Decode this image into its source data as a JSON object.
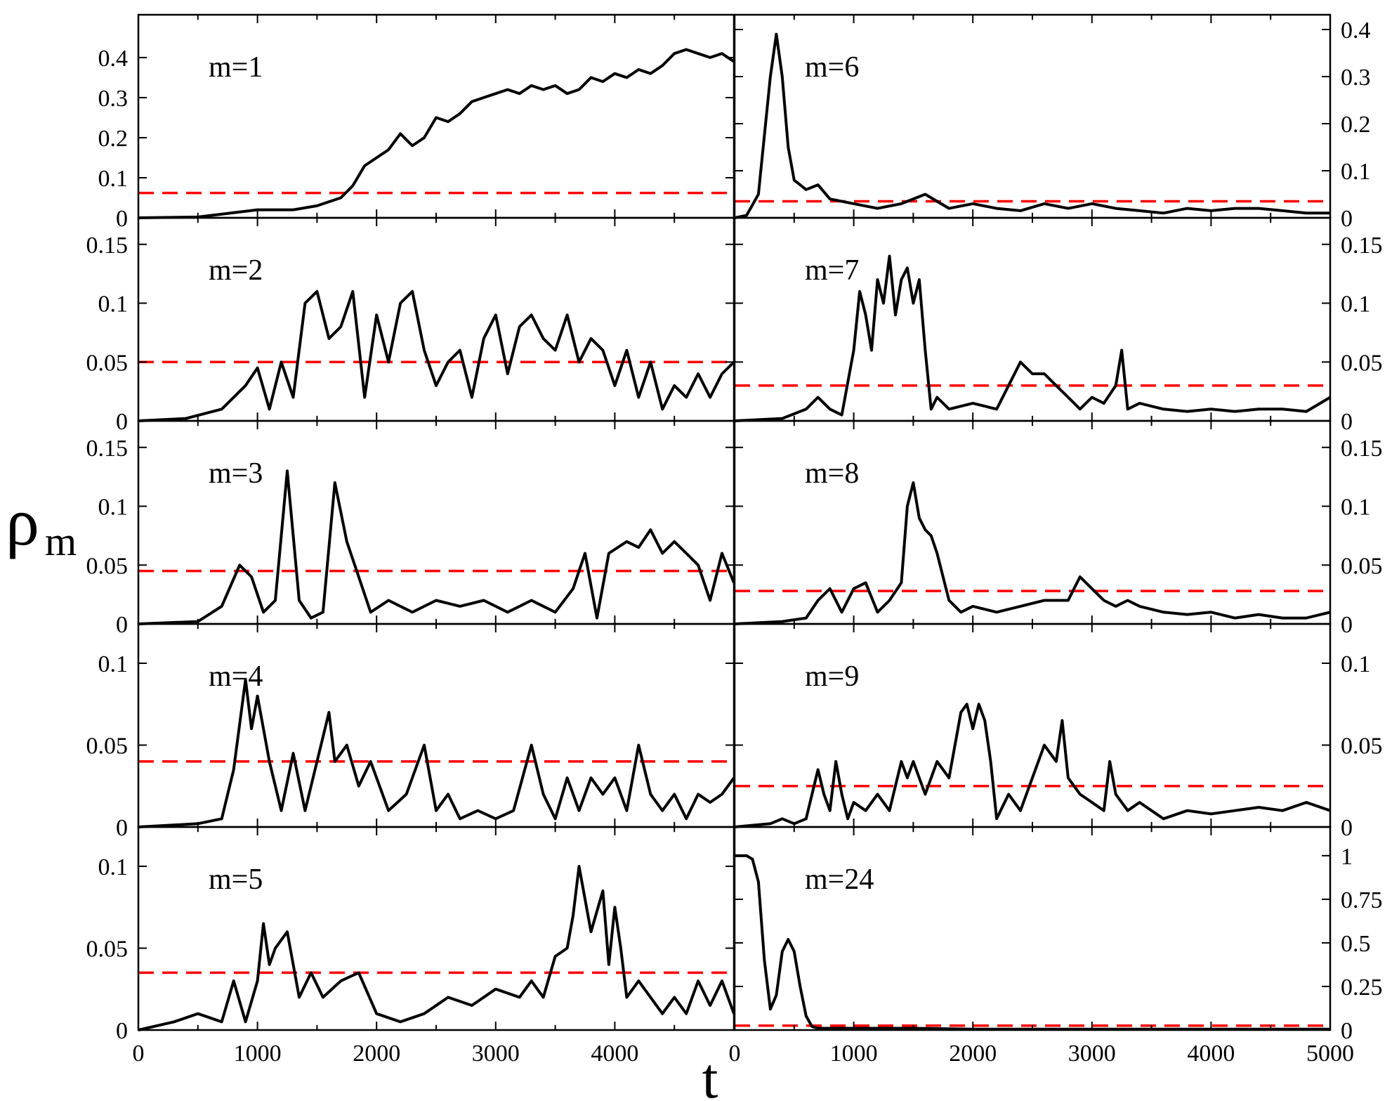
{
  "figure": {
    "ylabel": "ρ",
    "ylabel_sub": "m",
    "xlabel": "t"
  },
  "chart_data": [
    {
      "type": "line",
      "label": "m=1",
      "xlim": [
        0,
        5000
      ],
      "ylim": [
        0,
        0.47
      ],
      "yticks": [
        0,
        0.1,
        0.2,
        0.3,
        0.4
      ],
      "ytick_labels": [
        "0",
        "0.1",
        "0.2",
        "0.3",
        "0.4"
      ],
      "reference_level": 0.062,
      "series": {
        "x": [
          0,
          500,
          1000,
          1300,
          1500,
          1700,
          1800,
          1900,
          2000,
          2100,
          2200,
          2300,
          2400,
          2500,
          2600,
          2700,
          2800,
          2900,
          3000,
          3100,
          3200,
          3300,
          3400,
          3500,
          3600,
          3700,
          3800,
          3900,
          4000,
          4100,
          4200,
          4300,
          4400,
          4500,
          4600,
          4700,
          4800,
          4900,
          5000
        ],
        "y": [
          0,
          0.002,
          0.02,
          0.02,
          0.03,
          0.05,
          0.08,
          0.13,
          0.15,
          0.17,
          0.21,
          0.18,
          0.2,
          0.25,
          0.24,
          0.26,
          0.29,
          0.3,
          0.31,
          0.32,
          0.31,
          0.33,
          0.32,
          0.33,
          0.31,
          0.32,
          0.35,
          0.34,
          0.36,
          0.35,
          0.37,
          0.36,
          0.38,
          0.41,
          0.42,
          0.41,
          0.4,
          0.41,
          0.39
        ]
      }
    },
    {
      "type": "line",
      "label": "m=2",
      "xlim": [
        0,
        5000
      ],
      "ylim": [
        0,
        0.16
      ],
      "yticks": [
        0,
        0.05,
        0.1,
        0.15
      ],
      "ytick_labels": [
        "0",
        "0.05",
        "0.1",
        "0.15"
      ],
      "reference_level": 0.05,
      "series": {
        "x": [
          0,
          400,
          700,
          900,
          1000,
          1100,
          1200,
          1300,
          1400,
          1500,
          1600,
          1700,
          1800,
          1900,
          2000,
          2100,
          2200,
          2300,
          2400,
          2500,
          2600,
          2700,
          2800,
          2900,
          3000,
          3100,
          3200,
          3300,
          3400,
          3500,
          3600,
          3700,
          3800,
          3900,
          4000,
          4100,
          4200,
          4300,
          4400,
          4500,
          4600,
          4700,
          4800,
          4900,
          5000
        ],
        "y": [
          0,
          0.002,
          0.01,
          0.03,
          0.045,
          0.01,
          0.05,
          0.02,
          0.1,
          0.11,
          0.07,
          0.08,
          0.11,
          0.02,
          0.09,
          0.05,
          0.1,
          0.11,
          0.06,
          0.03,
          0.05,
          0.06,
          0.02,
          0.07,
          0.09,
          0.04,
          0.08,
          0.09,
          0.07,
          0.06,
          0.09,
          0.05,
          0.07,
          0.06,
          0.03,
          0.06,
          0.02,
          0.05,
          0.01,
          0.03,
          0.02,
          0.04,
          0.02,
          0.04,
          0.05
        ]
      }
    },
    {
      "type": "line",
      "label": "m=3",
      "xlim": [
        0,
        5000
      ],
      "ylim": [
        0,
        0.16
      ],
      "yticks": [
        0,
        0.05,
        0.1,
        0.15
      ],
      "ytick_labels": [
        "0",
        "0.05",
        "0.1",
        "0.15"
      ],
      "reference_level": 0.045,
      "series": {
        "x": [
          0,
          500,
          700,
          850,
          950,
          1050,
          1150,
          1250,
          1350,
          1450,
          1550,
          1650,
          1750,
          1850,
          1950,
          2100,
          2300,
          2500,
          2700,
          2900,
          3100,
          3300,
          3500,
          3650,
          3750,
          3850,
          3950,
          4100,
          4200,
          4300,
          4400,
          4500,
          4600,
          4700,
          4800,
          4900,
          5000
        ],
        "y": [
          0,
          0.002,
          0.015,
          0.05,
          0.04,
          0.01,
          0.02,
          0.13,
          0.02,
          0.005,
          0.01,
          0.12,
          0.07,
          0.04,
          0.01,
          0.02,
          0.01,
          0.02,
          0.015,
          0.02,
          0.01,
          0.02,
          0.01,
          0.03,
          0.06,
          0.005,
          0.06,
          0.07,
          0.065,
          0.08,
          0.06,
          0.07,
          0.06,
          0.05,
          0.02,
          0.06,
          0.035
        ]
      }
    },
    {
      "type": "line",
      "label": "m=4",
      "xlim": [
        0,
        5000
      ],
      "ylim": [
        0,
        0.115
      ],
      "yticks": [
        0,
        0.05,
        0.1
      ],
      "ytick_labels": [
        "0",
        "0.05",
        "0.1"
      ],
      "reference_level": 0.04,
      "series": {
        "x": [
          0,
          500,
          700,
          800,
          900,
          950,
          1000,
          1100,
          1200,
          1300,
          1400,
          1500,
          1600,
          1650,
          1750,
          1850,
          1950,
          2100,
          2250,
          2400,
          2500,
          2600,
          2700,
          2850,
          3000,
          3150,
          3300,
          3400,
          3500,
          3600,
          3700,
          3800,
          3900,
          4000,
          4100,
          4200,
          4300,
          4400,
          4500,
          4600,
          4700,
          4800,
          4900,
          5000
        ],
        "y": [
          0,
          0.002,
          0.005,
          0.035,
          0.09,
          0.06,
          0.08,
          0.04,
          0.01,
          0.045,
          0.01,
          0.04,
          0.07,
          0.04,
          0.05,
          0.025,
          0.04,
          0.01,
          0.02,
          0.05,
          0.01,
          0.02,
          0.005,
          0.01,
          0.005,
          0.01,
          0.05,
          0.02,
          0.005,
          0.03,
          0.01,
          0.03,
          0.02,
          0.03,
          0.01,
          0.05,
          0.02,
          0.01,
          0.02,
          0.005,
          0.02,
          0.015,
          0.02,
          0.03
        ]
      }
    },
    {
      "type": "line",
      "label": "m=5",
      "xlim": [
        0,
        5000
      ],
      "ylim": [
        0,
        0.115
      ],
      "yticks": [
        0,
        0.05,
        0.1
      ],
      "ytick_labels": [
        "0",
        "0.05",
        "0.1"
      ],
      "reference_level": 0.035,
      "series": {
        "x": [
          0,
          300,
          500,
          700,
          800,
          900,
          1000,
          1050,
          1100,
          1150,
          1250,
          1350,
          1450,
          1550,
          1700,
          1850,
          2000,
          2200,
          2400,
          2600,
          2800,
          3000,
          3200,
          3300,
          3400,
          3500,
          3600,
          3650,
          3700,
          3750,
          3800,
          3900,
          3950,
          4000,
          4050,
          4100,
          4200,
          4300,
          4400,
          4500,
          4600,
          4700,
          4800,
          4900,
          5000
        ],
        "y": [
          0,
          0.005,
          0.01,
          0.005,
          0.03,
          0.005,
          0.03,
          0.065,
          0.04,
          0.05,
          0.06,
          0.02,
          0.035,
          0.02,
          0.03,
          0.035,
          0.01,
          0.005,
          0.01,
          0.02,
          0.015,
          0.025,
          0.02,
          0.03,
          0.02,
          0.045,
          0.05,
          0.07,
          0.1,
          0.08,
          0.06,
          0.085,
          0.04,
          0.075,
          0.05,
          0.02,
          0.03,
          0.02,
          0.01,
          0.02,
          0.01,
          0.03,
          0.015,
          0.03,
          0.01
        ]
      }
    },
    {
      "type": "line",
      "label": "m=6",
      "xlim": [
        0,
        5000
      ],
      "ylim": [
        0,
        0.4
      ],
      "yticks": [
        0,
        0.1,
        0.2,
        0.3,
        0.4
      ],
      "ytick_labels": [
        "0",
        "0.1",
        "0.2",
        "0.3",
        "0.4"
      ],
      "reference_level": 0.035,
      "series": {
        "x": [
          0,
          100,
          200,
          300,
          350,
          400,
          450,
          500,
          550,
          600,
          700,
          800,
          1000,
          1200,
          1400,
          1600,
          1800,
          2000,
          2200,
          2400,
          2600,
          2800,
          3000,
          3200,
          3400,
          3600,
          3800,
          4000,
          4200,
          4400,
          4600,
          4800,
          5000
        ],
        "y": [
          0,
          0.005,
          0.05,
          0.3,
          0.39,
          0.3,
          0.15,
          0.08,
          0.07,
          0.06,
          0.07,
          0.04,
          0.03,
          0.02,
          0.03,
          0.05,
          0.02,
          0.03,
          0.02,
          0.015,
          0.03,
          0.02,
          0.03,
          0.02,
          0.015,
          0.01,
          0.02,
          0.015,
          0.02,
          0.02,
          0.015,
          0.01,
          0.01
        ]
      }
    },
    {
      "type": "line",
      "label": "m=7",
      "xlim": [
        0,
        5000
      ],
      "ylim": [
        0,
        0.16
      ],
      "yticks": [
        0,
        0.05,
        0.1,
        0.15
      ],
      "ytick_labels": [
        "0",
        "0.05",
        "0.1",
        "0.15"
      ],
      "reference_level": 0.03,
      "series": {
        "x": [
          0,
          400,
          600,
          700,
          800,
          900,
          1000,
          1050,
          1100,
          1150,
          1200,
          1250,
          1300,
          1350,
          1400,
          1450,
          1500,
          1550,
          1600,
          1650,
          1700,
          1800,
          2000,
          2200,
          2400,
          2500,
          2600,
          2700,
          2800,
          2900,
          3000,
          3100,
          3200,
          3250,
          3300,
          3400,
          3600,
          3800,
          4000,
          4200,
          4400,
          4600,
          4800,
          5000
        ],
        "y": [
          0,
          0.002,
          0.01,
          0.02,
          0.01,
          0.005,
          0.06,
          0.11,
          0.09,
          0.06,
          0.12,
          0.1,
          0.14,
          0.09,
          0.12,
          0.13,
          0.1,
          0.12,
          0.06,
          0.01,
          0.02,
          0.01,
          0.015,
          0.01,
          0.05,
          0.04,
          0.04,
          0.03,
          0.02,
          0.01,
          0.02,
          0.015,
          0.03,
          0.06,
          0.01,
          0.015,
          0.01,
          0.008,
          0.01,
          0.008,
          0.01,
          0.01,
          0.008,
          0.02
        ]
      }
    },
    {
      "type": "line",
      "label": "m=8",
      "xlim": [
        0,
        5000
      ],
      "ylim": [
        0,
        0.16
      ],
      "yticks": [
        0,
        0.05,
        0.1,
        0.15
      ],
      "ytick_labels": [
        "0",
        "0.05",
        "0.1",
        "0.15"
      ],
      "reference_level": 0.028,
      "series": {
        "x": [
          0,
          400,
          600,
          700,
          800,
          900,
          1000,
          1100,
          1200,
          1300,
          1400,
          1450,
          1500,
          1550,
          1600,
          1650,
          1700,
          1800,
          1900,
          2000,
          2200,
          2400,
          2600,
          2800,
          2900,
          3000,
          3100,
          3200,
          3300,
          3400,
          3600,
          3800,
          4000,
          4200,
          4400,
          4600,
          4800,
          5000
        ],
        "y": [
          0,
          0.002,
          0.005,
          0.02,
          0.03,
          0.01,
          0.03,
          0.035,
          0.01,
          0.02,
          0.035,
          0.1,
          0.12,
          0.09,
          0.08,
          0.075,
          0.06,
          0.02,
          0.01,
          0.015,
          0.01,
          0.015,
          0.02,
          0.02,
          0.04,
          0.03,
          0.02,
          0.015,
          0.02,
          0.015,
          0.01,
          0.008,
          0.01,
          0.005,
          0.008,
          0.005,
          0.005,
          0.01
        ]
      }
    },
    {
      "type": "line",
      "label": "m=9",
      "xlim": [
        0,
        5000
      ],
      "ylim": [
        0,
        0.115
      ],
      "yticks": [
        0,
        0.05,
        0.1
      ],
      "ytick_labels": [
        "0",
        "0.05",
        "0.1"
      ],
      "reference_level": 0.025,
      "series": {
        "x": [
          0,
          300,
          400,
          500,
          600,
          700,
          750,
          800,
          850,
          900,
          950,
          1000,
          1100,
          1200,
          1300,
          1400,
          1450,
          1500,
          1600,
          1700,
          1800,
          1900,
          1950,
          2000,
          2050,
          2100,
          2150,
          2200,
          2300,
          2400,
          2500,
          2600,
          2700,
          2750,
          2800,
          2900,
          3000,
          3100,
          3150,
          3200,
          3300,
          3400,
          3600,
          3800,
          4000,
          4200,
          4400,
          4600,
          4800,
          5000
        ],
        "y": [
          0,
          0.002,
          0.005,
          0.002,
          0.005,
          0.035,
          0.02,
          0.01,
          0.04,
          0.02,
          0.005,
          0.015,
          0.01,
          0.02,
          0.01,
          0.04,
          0.03,
          0.04,
          0.02,
          0.04,
          0.03,
          0.07,
          0.075,
          0.06,
          0.075,
          0.065,
          0.04,
          0.005,
          0.02,
          0.01,
          0.03,
          0.05,
          0.04,
          0.065,
          0.03,
          0.02,
          0.015,
          0.01,
          0.04,
          0.02,
          0.01,
          0.015,
          0.005,
          0.01,
          0.008,
          0.01,
          0.012,
          0.01,
          0.015,
          0.01
        ]
      }
    },
    {
      "type": "line",
      "label": "m=24",
      "xlim": [
        0,
        5000
      ],
      "ylim": [
        0,
        1.08
      ],
      "yticks": [
        0,
        0.25,
        0.5,
        0.75,
        1
      ],
      "ytick_labels": [
        "0",
        "0.25",
        "0.5",
        "0.75",
        "1"
      ],
      "reference_level": 0.025,
      "series": {
        "x": [
          0,
          100,
          150,
          200,
          250,
          300,
          350,
          400,
          450,
          500,
          550,
          600,
          650,
          700,
          800,
          1000,
          1500,
          2000,
          3000,
          4000,
          5000
        ],
        "y": [
          1.0,
          1.0,
          0.98,
          0.85,
          0.4,
          0.12,
          0.2,
          0.45,
          0.52,
          0.45,
          0.25,
          0.08,
          0.02,
          0.01,
          0.01,
          0.01,
          0.01,
          0.005,
          0.005,
          0.005,
          0.005
        ]
      }
    }
  ],
  "x_axis": {
    "ticks": [
      0,
      1000,
      2000,
      3000,
      4000
    ],
    "tick_labels": [
      "0",
      "1000",
      "2000",
      "3000",
      "4000"
    ],
    "right_ticks": [
      0,
      1000,
      2000,
      3000,
      4000,
      5000
    ],
    "right_tick_labels": [
      "0",
      "1000",
      "2000",
      "3000",
      "4000",
      "5000"
    ]
  },
  "colors": {
    "series": "#000000",
    "reference": "#ff0000",
    "axes": "#000000",
    "background": "#ffffff"
  }
}
